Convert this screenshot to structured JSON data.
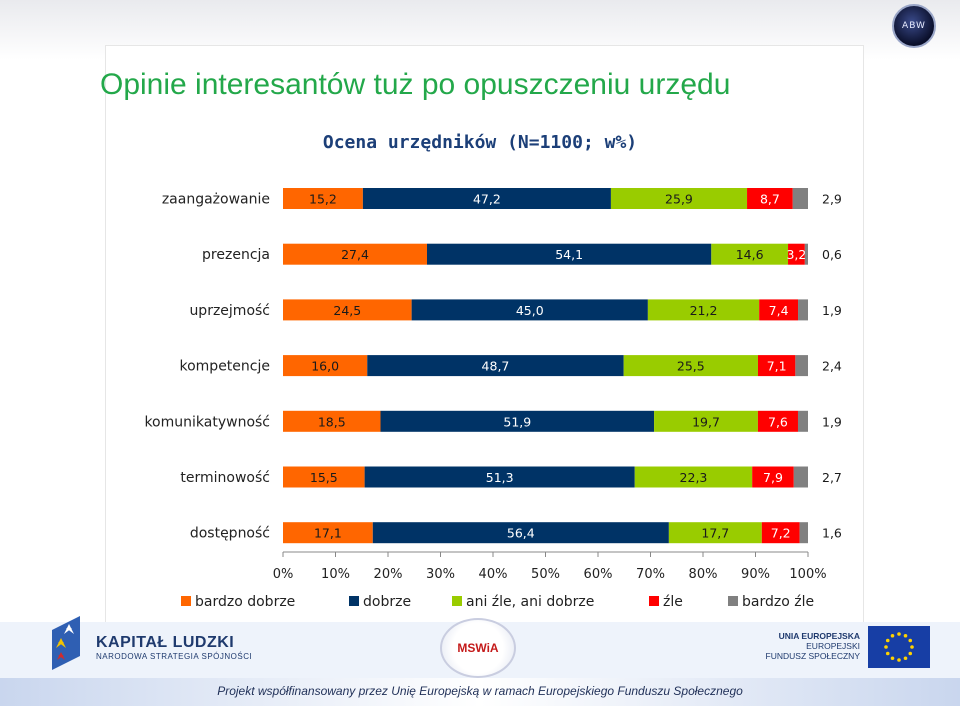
{
  "header": {
    "title": "Opinie interesantów tuż po opuszczeniu urzędu",
    "logo_text": "ABW"
  },
  "chart_data": {
    "type": "bar",
    "orientation": "horizontal",
    "stacked": true,
    "percent": true,
    "title": "Ocena urzędników (N=1100; w%)",
    "categories": [
      "zaangażowanie",
      "prezencja",
      "uprzejmość",
      "kompetencje",
      "komunikatywność",
      "terminowość",
      "dostępność"
    ],
    "series": [
      {
        "name": "bardzo dobrze",
        "color": "#ff6600",
        "values": [
          15.2,
          27.4,
          24.5,
          16.0,
          18.5,
          15.5,
          17.1
        ],
        "labels": [
          "15,2",
          "27,4",
          "24,5",
          "16,0",
          "18,5",
          "15,5",
          "17,1"
        ]
      },
      {
        "name": "dobrze",
        "color": "#003366",
        "values": [
          47.2,
          54.1,
          45.0,
          48.7,
          51.9,
          51.3,
          56.4
        ],
        "labels": [
          "47,2",
          "54,1",
          "45,0",
          "48,7",
          "51,9",
          "51,3",
          "56,4"
        ]
      },
      {
        "name": "ani źle, ani dobrze",
        "color": "#99cc00",
        "values": [
          25.9,
          14.6,
          21.2,
          25.5,
          19.7,
          22.3,
          17.7
        ],
        "labels": [
          "25,9",
          "14,6",
          "21,2",
          "25,5",
          "19,7",
          "22,3",
          "17,7"
        ]
      },
      {
        "name": "źle",
        "color": "#ff0000",
        "values": [
          8.7,
          3.2,
          7.4,
          7.1,
          7.6,
          7.9,
          7.2
        ],
        "labels": [
          "8,7",
          "3,2",
          "7,4",
          "7,1",
          "7,6",
          "7,9",
          "7,2"
        ]
      },
      {
        "name": "bardzo źle",
        "color": "#808080",
        "values": [
          2.9,
          0.6,
          1.9,
          2.4,
          1.9,
          2.7,
          1.6
        ],
        "labels": [
          "2,9",
          "0,6",
          "1,9",
          "2,4",
          "1,9",
          "2,7",
          "1,6"
        ]
      }
    ],
    "xlim": [
      0,
      100
    ],
    "xticks": [
      "0%",
      "10%",
      "20%",
      "30%",
      "40%",
      "50%",
      "60%",
      "70%",
      "80%",
      "90%",
      "100%"
    ],
    "grid": false,
    "legend_position": "bottom"
  },
  "footer": {
    "kl_title": "KAPITAŁ LUDZKI",
    "kl_subtitle": "NARODOWA STRATEGIA SPÓJNOŚCI",
    "mswia": "MSWiA",
    "eu_line1": "UNIA EUROPEJSKA",
    "eu_line2": "EUROPEJSKI",
    "eu_line3": "FUNDUSZ SPOŁECZNY",
    "cofinancing": "Projekt współfinansowany przez Unię Europejską w ramach Europejskiego Funduszu Społecznego"
  }
}
